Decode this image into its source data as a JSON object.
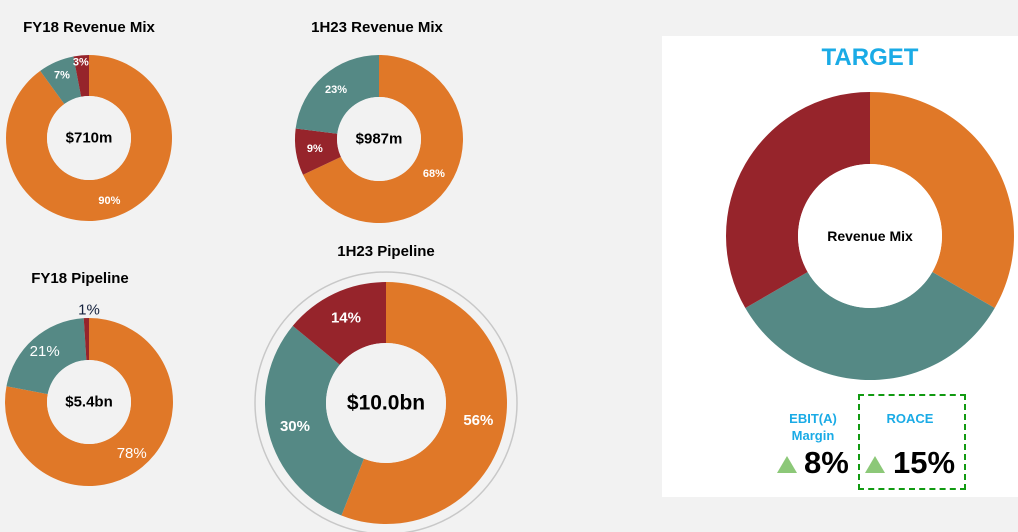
{
  "colors": {
    "orange": "#e07828",
    "teal": "#558985",
    "red": "#96242b",
    "target_blue": "#1aabe6",
    "kpi_up": "#8cc878",
    "dashed_border": "#119a11",
    "ring_gray": "#c8c8c8"
  },
  "chart_data": [
    {
      "type": "pie",
      "variant": "donut",
      "title": "FY18 Revenue Mix",
      "center_label": "$710m",
      "slices": [
        {
          "value": 90,
          "label": "90%",
          "color": "#e07828"
        },
        {
          "value": 7,
          "label": "7%",
          "color": "#558985"
        },
        {
          "value": 3,
          "label": "3%",
          "color": "#96242b"
        }
      ],
      "start": "12 o'clock",
      "direction": "clockwise",
      "slice_order_clockwise": [
        "orange",
        "teal",
        "red"
      ]
    },
    {
      "type": "pie",
      "variant": "donut",
      "title": "1H23 Revenue Mix",
      "center_label": "$987m",
      "slices": [
        {
          "value": 68,
          "label": "68%",
          "color": "#e07828"
        },
        {
          "value": 9,
          "label": "9%",
          "color": "#96242b"
        },
        {
          "value": 23,
          "label": "23%",
          "color": "#558985"
        }
      ],
      "start": "12 o'clock",
      "direction": "clockwise"
    },
    {
      "type": "pie",
      "variant": "donut",
      "title": "FY18 Pipeline",
      "center_label": "$5.4bn",
      "slices": [
        {
          "value": 78,
          "label": "78%",
          "color": "#e07828"
        },
        {
          "value": 21,
          "label": "21%",
          "color": "#558985"
        },
        {
          "value": 1,
          "label": "1%",
          "color": "#96242b"
        }
      ],
      "start": "12 o'clock",
      "direction": "clockwise"
    },
    {
      "type": "pie",
      "variant": "donut",
      "title": "1H23 Pipeline",
      "center_label": "$10.0bn",
      "slices": [
        {
          "value": 56,
          "label": "56%",
          "color": "#e07828"
        },
        {
          "value": 30,
          "label": "30%",
          "color": "#558985"
        },
        {
          "value": 14,
          "label": "14%",
          "color": "#96242b"
        }
      ],
      "start": "12 o'clock",
      "direction": "clockwise",
      "highlight_ring": true
    },
    {
      "type": "pie",
      "variant": "donut",
      "title": "TARGET",
      "center_label": "Revenue Mix",
      "slices": [
        {
          "value": 33.33,
          "label": "",
          "color": "#e07828"
        },
        {
          "value": 33.33,
          "label": "",
          "color": "#558985"
        },
        {
          "value": 33.34,
          "label": "",
          "color": "#96242b"
        }
      ],
      "start": "12 o'clock",
      "direction": "clockwise"
    }
  ],
  "target": {
    "title": "TARGET",
    "kpis": [
      {
        "label_line1": "EBIT(A)",
        "label_line2": "Margin",
        "value": "8%",
        "trend": "up"
      },
      {
        "label_line1": "ROACE",
        "label_line2": "",
        "value": "15%",
        "trend": "up",
        "highlighted": true
      }
    ]
  }
}
